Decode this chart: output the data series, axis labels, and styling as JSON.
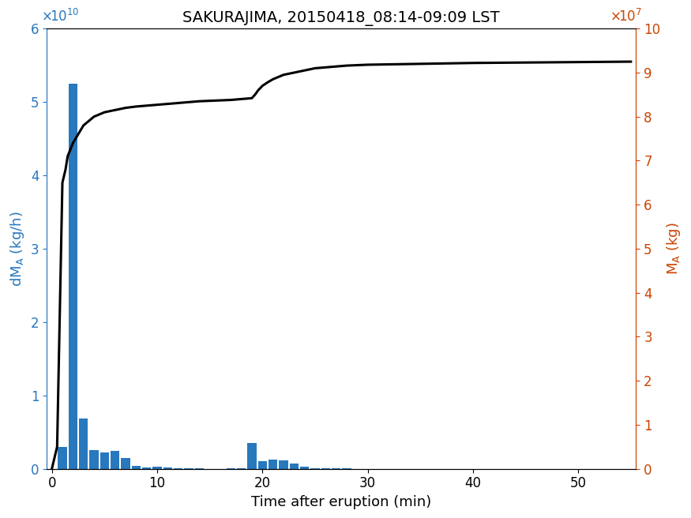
{
  "title": "SAKURAJIMA, 20150418_08:14-09:09 LST",
  "xlabel": "Time after eruption (min)",
  "ylabel_left": "dM$_A$ (kg/h)",
  "ylabel_right": "M$_A$ (kg)",
  "bar_color": "#2878BE",
  "line_color": "#000000",
  "left_axis_color": "#2878BE",
  "right_axis_color": "#CC4400",
  "xlim": [
    -0.5,
    55.5
  ],
  "ylim_left": [
    0,
    60000000000.0
  ],
  "ylim_right": [
    0,
    100000000.0
  ],
  "bar_centers": [
    1.0,
    2.0,
    3.0,
    4.0,
    5.0,
    6.0,
    7.0,
    8.0,
    9.0,
    10.0,
    11.0,
    12.0,
    13.0,
    14.0,
    17.0,
    18.0,
    19.0,
    20.0,
    21.0,
    22.0,
    23.0,
    24.0,
    25.0,
    26.0,
    27.0,
    28.0
  ],
  "bar_heights": [
    3000000000.0,
    52500000000.0,
    6800000000.0,
    2500000000.0,
    2200000000.0,
    2400000000.0,
    1500000000.0,
    400000000.0,
    150000000.0,
    250000000.0,
    120000000.0,
    50000000.0,
    50000000.0,
    50000000.0,
    50000000.0,
    50000000.0,
    3500000000.0,
    1000000000.0,
    1200000000.0,
    1150000000.0,
    700000000.0,
    300000000.0,
    100000000.0,
    80000000.0,
    80000000.0,
    100000000.0
  ],
  "bar_width": 0.85,
  "cum_times": [
    0.0,
    0.5,
    1.0,
    1.3,
    1.5,
    2.0,
    2.5,
    3.0,
    3.5,
    4.0,
    4.5,
    5.0,
    6.0,
    7.0,
    8.0,
    9.0,
    10.0,
    11.0,
    12.0,
    13.0,
    14.0,
    15.0,
    16.0,
    17.0,
    17.5,
    18.0,
    18.5,
    19.0,
    19.3,
    19.6,
    20.0,
    20.5,
    21.0,
    21.5,
    22.0,
    23.0,
    24.0,
    25.0,
    26.0,
    27.0,
    28.0,
    30.0,
    35.0,
    40.0,
    45.0,
    50.0,
    55.0
  ],
  "cum_values": [
    0.0,
    5000000.0,
    65000000.0,
    68000000.0,
    71000000.0,
    74000000.0,
    76000000.0,
    78000000.0,
    79000000.0,
    80000000.0,
    80500000.0,
    81000000.0,
    81500000.0,
    82000000.0,
    82300000.0,
    82500000.0,
    82700000.0,
    82900000.0,
    83100000.0,
    83300000.0,
    83500000.0,
    83600000.0,
    83700000.0,
    83800000.0,
    83900000.0,
    84000000.0,
    84100000.0,
    84200000.0,
    85000000.0,
    86000000.0,
    87000000.0,
    87800000.0,
    88500000.0,
    89000000.0,
    89500000.0,
    90000000.0,
    90500000.0,
    91000000.0,
    91200000.0,
    91400000.0,
    91600000.0,
    91800000.0,
    92000000.0,
    92200000.0,
    92300000.0,
    92400000.0,
    92500000.0
  ],
  "xticks": [
    0,
    10,
    20,
    30,
    40,
    50
  ],
  "yticks_left": [
    0,
    10000000000.0,
    20000000000.0,
    30000000000.0,
    40000000000.0,
    50000000000.0,
    60000000000.0
  ],
  "yticks_right": [
    0,
    10000000.0,
    20000000.0,
    30000000.0,
    40000000.0,
    50000000.0,
    60000000.0,
    70000000.0,
    80000000.0,
    90000000.0,
    100000000.0
  ],
  "title_fontsize": 14,
  "label_fontsize": 13,
  "tick_fontsize": 12,
  "figsize": [
    8.75,
    6.56
  ],
  "dpi": 100
}
